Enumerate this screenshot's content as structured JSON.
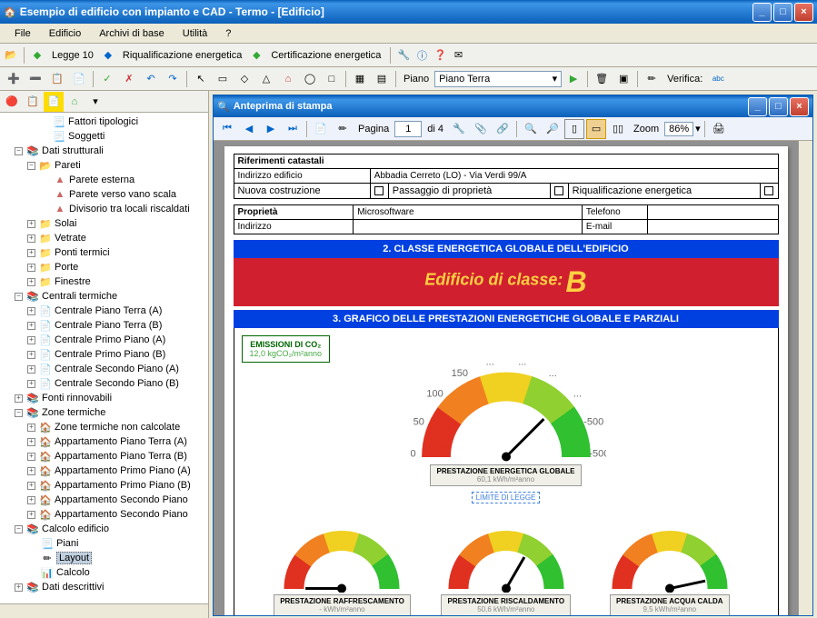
{
  "window": {
    "title": "Esempio di edificio con impianto e CAD - Termo - [Edificio]",
    "min": "_",
    "max": "□",
    "close": "×"
  },
  "menu": {
    "file": "File",
    "edificio": "Edificio",
    "archivi": "Archivi di base",
    "utilita": "Utilità",
    "help": "?"
  },
  "tb1": {
    "legge": "Legge 10",
    "riqual": "Riqualificazione energetica",
    "cert": "Certificazione energetica"
  },
  "tb2": {
    "piano_lbl": "Piano",
    "piano_val": "Piano Terra",
    "verifica": "Verifica:"
  },
  "tree": {
    "n1": "Fattori tipologici",
    "n2": "Soggetti",
    "n3": "Dati strutturali",
    "n4": "Pareti",
    "n4a": "Parete esterna",
    "n4b": "Parete verso vano scala",
    "n4c": "Divisorio tra locali riscaldati",
    "n5": "Solai",
    "n6": "Vetrate",
    "n7": "Ponti termici",
    "n8": "Porte",
    "n9": "Finestre",
    "n10": "Centrali termiche",
    "n10a": "Centrale Piano Terra (A)",
    "n10b": "Centrale Piano Terra (B)",
    "n10c": "Centrale Primo Piano (A)",
    "n10d": "Centrale Primo Piano (B)",
    "n10e": "Centrale Secondo Piano (A)",
    "n10f": "Centrale Secondo Piano (B)",
    "n11": "Fonti rinnovabili",
    "n12": "Zone termiche",
    "n12a": "Zone termiche non calcolate",
    "n12b": "Appartamento Piano Terra (A)",
    "n12c": "Appartamento Piano Terra (B)",
    "n12d": "Appartamento Primo Piano (A)",
    "n12e": "Appartamento Primo Piano (B)",
    "n12f": "Appartamento Secondo Piano",
    "n12g": "Appartamento Secondo Piano",
    "n13": "Calcolo edificio",
    "n13a": "Piani",
    "n13b": "Layout",
    "n13c": "Calcolo",
    "n14": "Dati descrittivi"
  },
  "preview": {
    "title": "Anteprima di stampa",
    "pagina": "Pagina",
    "page_cur": "1",
    "page_of": "di 4",
    "zoom_lbl": "Zoom",
    "zoom_val": "86%"
  },
  "doc": {
    "rif": "Riferimenti catastali",
    "ind_lbl": "Indirizzo edificio",
    "ind_val": "Abbadia Cerreto (LO) - Via Verdi 99/A",
    "nuova": "Nuova costruzione",
    "passaggio": "Passaggio di proprietà",
    "riqual": "Riqualificazione energetica",
    "prop_lbl": "Proprietà",
    "prop_val": "Microsoftware",
    "tel": "Telefono",
    "ind2": "Indirizzo",
    "email": "E-mail",
    "sec2": "2. CLASSE ENERGETICA GLOBALE DELL'EDIFICIO",
    "classe_pre": "Edificio di classe:",
    "classe": "B",
    "sec3": "3. GRAFICO DELLE PRESTAZIONI ENERGETICHE GLOBALE E PARZIALI",
    "co2_h": "EMISSIONI DI CO₂",
    "co2_v": "12,0 kgCO₂/m²anno",
    "limite": "LIMITE DI LEGGE"
  },
  "gauges": {
    "main": {
      "title": "PRESTAZIONE ENERGETICA GLOBALE",
      "val": "60,1 kWh/m²anno",
      "ticks": [
        "0",
        "50",
        "100",
        "150",
        "...",
        "...",
        "...",
        "...",
        "-500",
        "-500"
      ],
      "size": 200,
      "needle_deg": 45
    },
    "raff": {
      "title": "PRESTAZIONE RAFFRESCAMENTO",
      "val": "- kWh/m²anno",
      "size": 140,
      "needle_deg": -90
    },
    "risc": {
      "title": "PRESTAZIONE RISCALDAMENTO",
      "val": "50,6 kWh/m²anno",
      "size": 140,
      "needle_deg": 30
    },
    "acqua": {
      "title": "PRESTAZIONE ACQUA CALDA",
      "val": "9,5 kWh/m²anno",
      "size": 140,
      "needle_deg": 78
    },
    "colors": {
      "arc_stops": [
        "#e03020",
        "#f08020",
        "#f0d020",
        "#90d030",
        "#30c030"
      ],
      "bg": "#ffffff"
    }
  }
}
